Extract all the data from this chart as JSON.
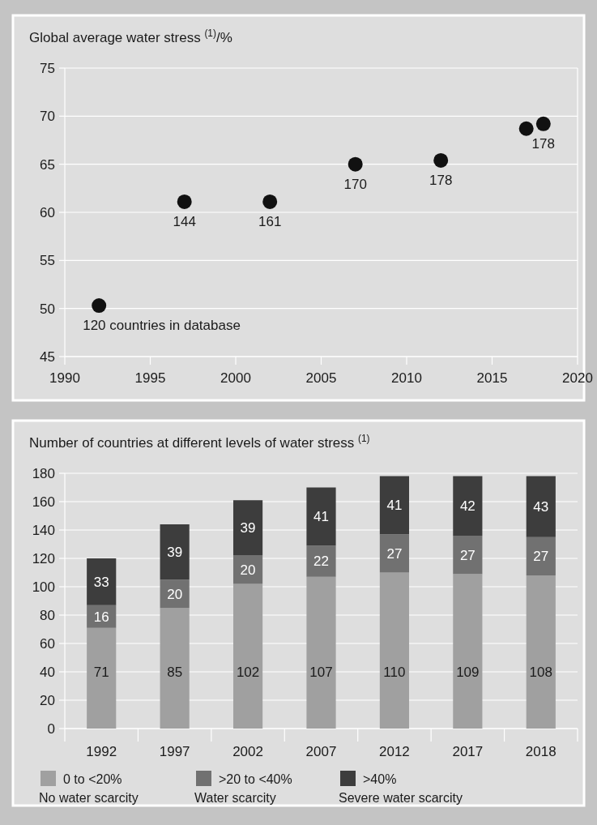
{
  "chart_data": [
    {
      "type": "scatter",
      "title": "Global average water stress $^{(1)}$/%",
      "x": [
        1992,
        1997,
        2002,
        2007,
        2012,
        2017,
        2018
      ],
      "values": [
        50.3,
        61.1,
        61.1,
        65,
        65.4,
        68.7,
        69.2
      ],
      "color": "#111111",
      "marker": "circle",
      "xlim": [
        1990,
        2020
      ],
      "xticks": [
        1990,
        1995,
        2000,
        2005,
        2010,
        2015,
        2020
      ],
      "ylim": [
        45,
        75
      ],
      "yticks": [
        45,
        50,
        55,
        60,
        65,
        70,
        75
      ],
      "grid": "y",
      "annotations": [
        {
          "text": "120 countries in database",
          "x": 1992,
          "y": 50.3
        },
        {
          "text": "144",
          "x": 1997,
          "y": 61.1
        },
        {
          "text": "161",
          "x": 2002,
          "y": 61.1
        },
        {
          "text": "170",
          "x": 2007,
          "y": 65
        },
        {
          "text": "178",
          "x": 2012,
          "y": 65.4
        },
        {
          "text": "178",
          "x": 2018,
          "y": 69.2
        }
      ]
    },
    {
      "type": "bar",
      "stacked": true,
      "title": "Number of countries at different levels of water stress $^{(1)}$",
      "categories": [
        "1992",
        "1997",
        "2002",
        "2007",
        "2012",
        "2017",
        "2018"
      ],
      "ylim": [
        0,
        180
      ],
      "yticks": [
        0,
        20,
        40,
        60,
        80,
        100,
        120,
        140,
        160,
        180
      ],
      "grid": "y",
      "legend": "bottom",
      "data_labels": true,
      "series": [
        {
          "name": "0 to <20%\nNo water scarcity",
          "color": "#a0a0a0",
          "values": [
            71,
            85,
            102,
            107,
            110,
            109,
            108
          ]
        },
        {
          "name": ">20 to <40%\nWater scarcity",
          "color": "#717171",
          "values": [
            16,
            20,
            20,
            22,
            27,
            27,
            27
          ]
        },
        {
          "name": ">40%\nSevere water scarcity",
          "color": "#3d3d3d",
          "values": [
            33,
            39,
            39,
            41,
            41,
            42,
            43
          ]
        }
      ]
    }
  ]
}
